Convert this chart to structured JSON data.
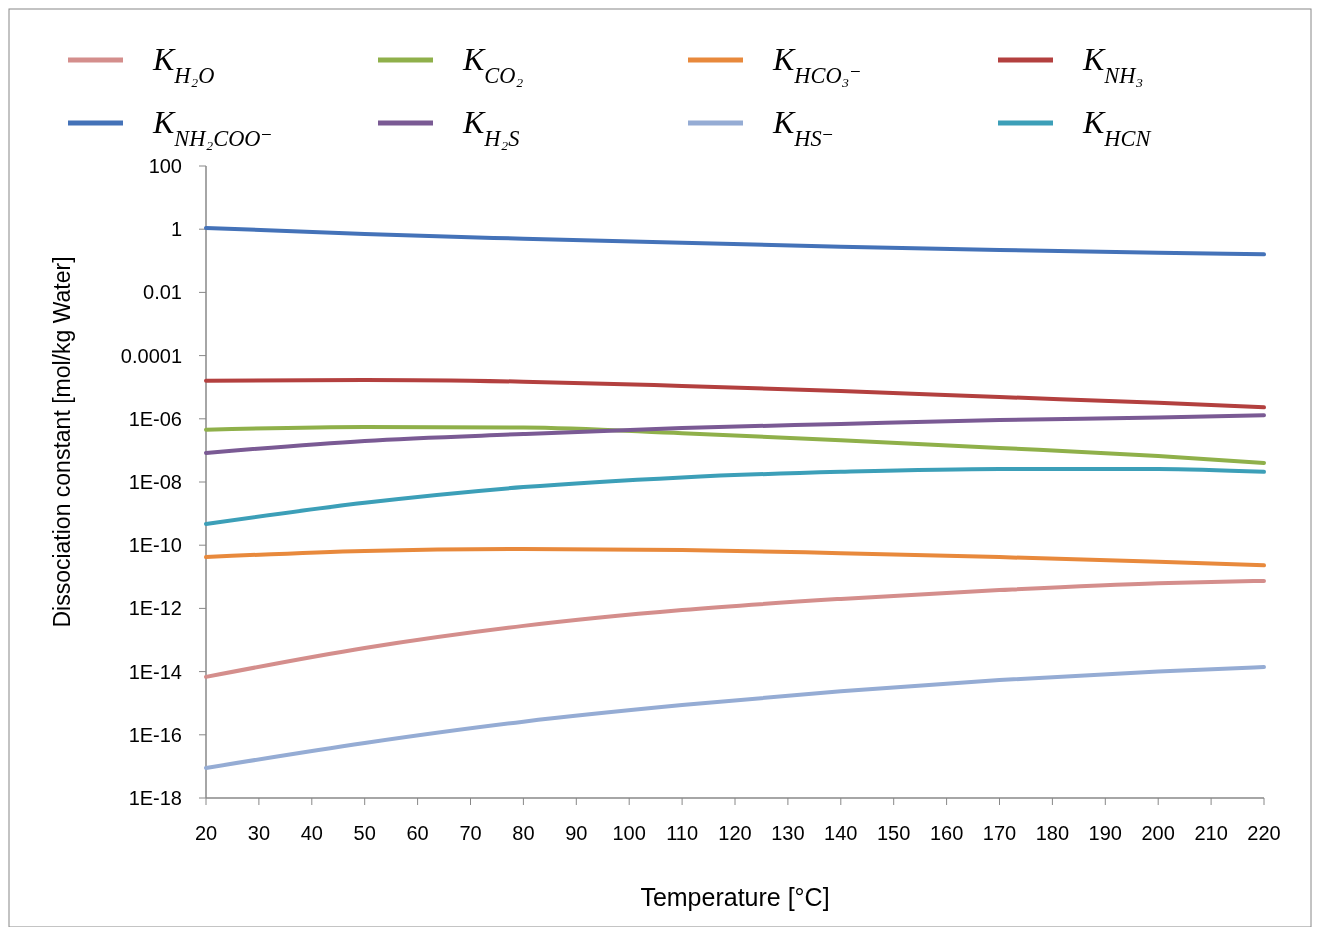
{
  "chart_data": {
    "type": "line",
    "xlabel": "Temperature [°C]",
    "ylabel": "Dissociation constant  [mol/kg Water]",
    "log": "y",
    "grid": false,
    "legend": "top",
    "marker": "none",
    "line_style": "solid",
    "x": [
      20,
      50,
      80,
      110,
      140,
      170,
      200,
      220
    ],
    "xlim": [
      20,
      220
    ],
    "xticks": [
      20,
      30,
      40,
      50,
      60,
      70,
      80,
      90,
      100,
      110,
      120,
      130,
      140,
      150,
      160,
      170,
      180,
      190,
      200,
      210,
      220
    ],
    "ylim": [
      1e-18,
      100
    ],
    "yticks": [
      100,
      1,
      0.01,
      0.0001,
      {
        "value": 1e-06,
        "label": "1E-06"
      },
      {
        "value": 1e-08,
        "label": "1E-08"
      },
      {
        "value": 1e-10,
        "label": "1E-10"
      },
      {
        "value": 1e-12,
        "label": "1E-12"
      },
      {
        "value": 1e-14,
        "label": "1E-14"
      },
      {
        "value": 1e-16,
        "label": "1E-16"
      },
      {
        "value": 1e-18,
        "label": "1E-18"
      }
    ],
    "series": [
      {
        "name": "K$_{H₂O}$",
        "color": "#d48e8c",
        "values": [
          6.8e-15,
          5.6e-14,
          2.8e-13,
          8.9e-13,
          2e-12,
          3.8e-12,
          6.3e-12,
          7.4e-12
        ]
      },
      {
        "name": "K$_{CO₂}$",
        "color": "#8fb04a",
        "values": [
          4.5e-07,
          5.5e-07,
          5.3e-07,
          3.5e-07,
          2.1e-07,
          1.2e-07,
          6.6e-08,
          4e-08
        ]
      },
      {
        "name": "K$_{HCO₃⁻}$",
        "color": "#e8893c",
        "values": [
          4.2e-11,
          6.6e-11,
          7.6e-11,
          7.1e-11,
          5.6e-11,
          4.2e-11,
          3e-11,
          2.3e-11
        ]
      },
      {
        "name": "K$_{NH₃}$",
        "color": "#b3403f",
        "values": [
          1.6e-05,
          1.7e-05,
          1.5e-05,
          1.1e-05,
          7.6e-06,
          4.9e-06,
          3.2e-06,
          2.3e-06
        ]
      },
      {
        "name": "K$_{NH₂COO⁻}$",
        "color": "#4472b8",
        "values": [
          1.1,
          0.7,
          0.5,
          0.37,
          0.28,
          0.22,
          0.18,
          0.16
        ]
      },
      {
        "name": "K$_{H₂S}$",
        "color": "#7a5a94",
        "values": [
          8.3e-08,
          2e-07,
          3.3e-07,
          5.1e-07,
          6.9e-07,
          9.2e-07,
          1.1e-06,
          1.3e-06
        ]
      },
      {
        "name": "K$_{HS⁻}$",
        "color": "#95acd4",
        "values": [
          8.9e-18,
          5.5e-17,
          2.6e-16,
          8.7e-16,
          2.4e-15,
          5.4e-15,
          1e-14,
          1.4e-14
        ]
      },
      {
        "name": "K$_{HCN}$",
        "color": "#3c9fb8",
        "values": [
          4.7e-10,
          2.2e-09,
          6.9e-09,
          1.4e-08,
          2.1e-08,
          2.6e-08,
          2.6e-08,
          2.1e-08
        ]
      }
    ]
  }
}
